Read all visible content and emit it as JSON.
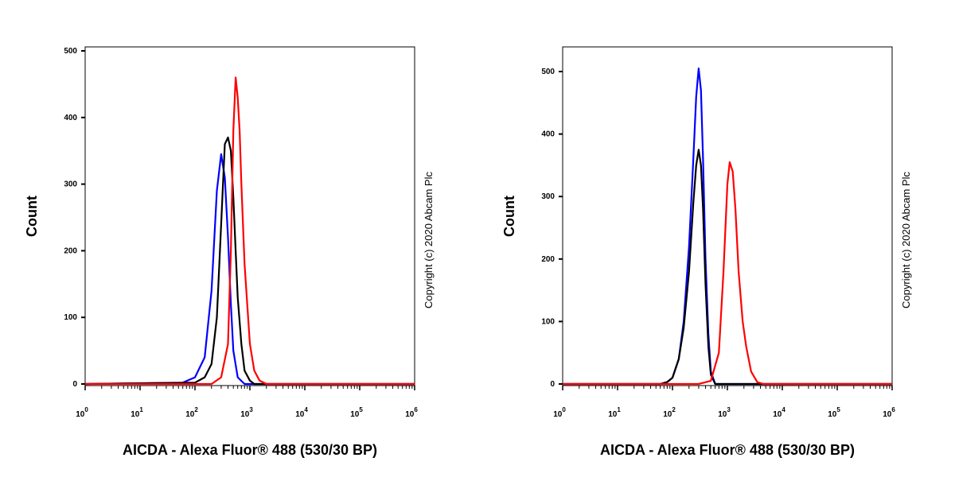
{
  "chart_data": [
    {
      "type": "line",
      "xlabel": "AICDA - Alexa Fluor® 488 (530/30 BP)",
      "ylabel": "Count",
      "copyright": "Copyright (c) 2020 Abcam Plc",
      "x_scale": "log",
      "xlim": [
        1,
        1000000
      ],
      "ylim": [
        0,
        500
      ],
      "x_ticks": [
        {
          "base": "10",
          "exp": "0"
        },
        {
          "base": "10",
          "exp": "1"
        },
        {
          "base": "10",
          "exp": "2"
        },
        {
          "base": "10",
          "exp": "3"
        },
        {
          "base": "10",
          "exp": "4"
        },
        {
          "base": "10",
          "exp": "5"
        },
        {
          "base": "10",
          "exp": "6"
        }
      ],
      "y_ticks": [
        "0",
        "100",
        "200",
        "300",
        "400",
        "500"
      ],
      "series": [
        {
          "color": "#0000ff",
          "x": [
            1,
            60,
            100,
            150,
            200,
            250,
            300,
            350,
            400,
            450,
            500,
            600,
            800,
            1000000
          ],
          "y": [
            0,
            2,
            10,
            40,
            140,
            290,
            345,
            310,
            220,
            120,
            50,
            10,
            0,
            0
          ]
        },
        {
          "color": "#000000",
          "x": [
            1,
            100,
            150,
            200,
            250,
            300,
            350,
            400,
            450,
            500,
            550,
            600,
            700,
            800,
            1000,
            1200,
            1000000
          ],
          "y": [
            0,
            2,
            10,
            30,
            100,
            240,
            360,
            370,
            350,
            280,
            200,
            130,
            60,
            20,
            5,
            0,
            0
          ]
        },
        {
          "color": "#ff0000",
          "x": [
            1,
            200,
            300,
            400,
            450,
            500,
            550,
            600,
            650,
            700,
            800,
            1000,
            1200,
            1500,
            2000,
            1000000
          ],
          "y": [
            0,
            0,
            10,
            60,
            200,
            380,
            460,
            430,
            380,
            300,
            180,
            60,
            20,
            5,
            0,
            0
          ]
        }
      ]
    },
    {
      "type": "line",
      "xlabel": "AICDA - Alexa Fluor® 488 (530/30 BP)",
      "ylabel": "Count",
      "copyright": "Copyright (c) 2020 Abcam Plc",
      "x_scale": "log",
      "xlim": [
        1,
        1000000
      ],
      "ylim": [
        0,
        540
      ],
      "x_ticks": [
        {
          "base": "10",
          "exp": "0"
        },
        {
          "base": "10",
          "exp": "1"
        },
        {
          "base": "10",
          "exp": "2"
        },
        {
          "base": "10",
          "exp": "3"
        },
        {
          "base": "10",
          "exp": "4"
        },
        {
          "base": "10",
          "exp": "5"
        },
        {
          "base": "10",
          "exp": "6"
        }
      ],
      "y_ticks": [
        "0",
        "100",
        "200",
        "300",
        "400",
        "500"
      ],
      "series": [
        {
          "color": "#0000ff",
          "x": [
            1,
            60,
            80,
            100,
            130,
            160,
            200,
            240,
            270,
            300,
            330,
            360,
            400,
            450,
            500,
            600,
            1000000
          ],
          "y": [
            0,
            0,
            3,
            10,
            40,
            100,
            220,
            360,
            460,
            505,
            470,
            360,
            200,
            80,
            20,
            0,
            0
          ]
        },
        {
          "color": "#000000",
          "x": [
            1,
            60,
            80,
            100,
            130,
            160,
            200,
            240,
            270,
            300,
            330,
            360,
            400,
            450,
            500,
            600,
            1000000
          ],
          "y": [
            0,
            0,
            3,
            10,
            40,
            90,
            180,
            290,
            350,
            375,
            350,
            280,
            160,
            60,
            15,
            0,
            0
          ]
        },
        {
          "color": "#ff0000",
          "x": [
            1,
            300,
            500,
            700,
            850,
            1000,
            1100,
            1250,
            1400,
            1600,
            1900,
            2200,
            2700,
            3500,
            4500,
            1000000
          ],
          "y": [
            0,
            0,
            5,
            50,
            180,
            320,
            355,
            340,
            280,
            180,
            100,
            60,
            20,
            3,
            0,
            0
          ]
        }
      ]
    }
  ]
}
